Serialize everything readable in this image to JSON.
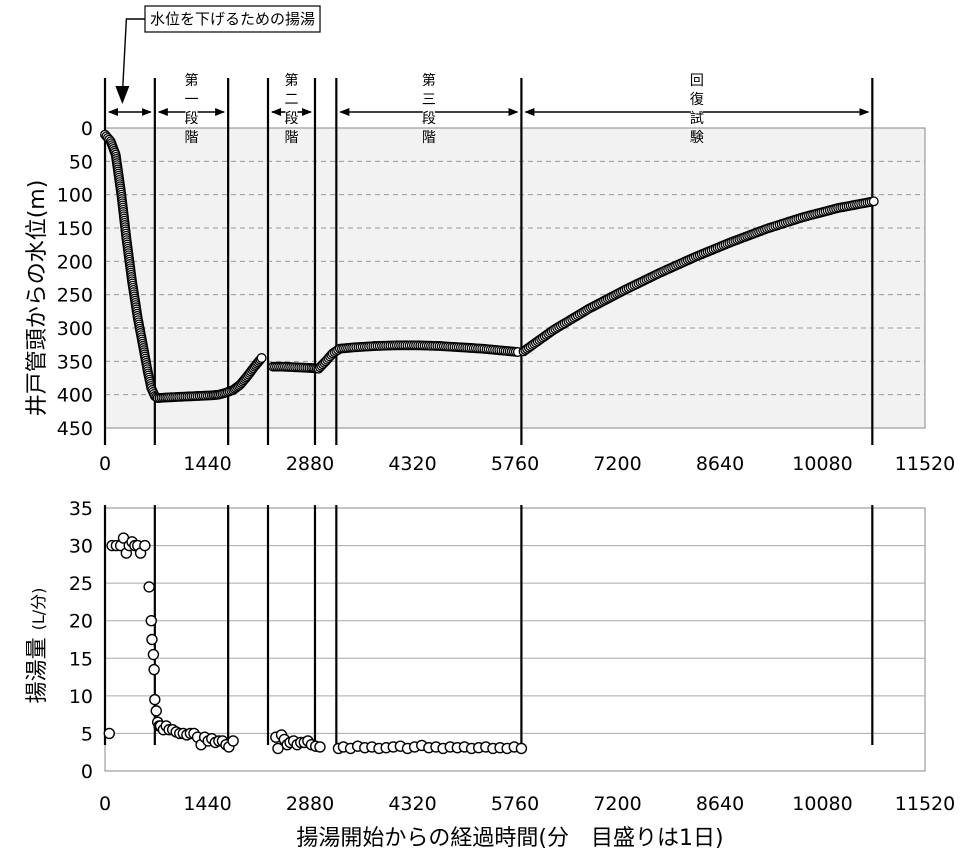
{
  "chart_data": [
    {
      "type": "scatter",
      "ylabel": "井戸管頭からの水位(m)",
      "xlim": [
        0,
        11520
      ],
      "ylim": [
        0,
        450
      ],
      "y_inverted": true,
      "x_ticks": [
        "0",
        "1440",
        "2880",
        "4320",
        "5760",
        "7200",
        "8640",
        "10080",
        "11520"
      ],
      "y_ticks": [
        "0",
        "50",
        "100",
        "150",
        "200",
        "250",
        "300",
        "350",
        "400",
        "450"
      ],
      "grid": "horizontal dashed",
      "marker": "open circle",
      "annotation": "水位を下げるための揚湯",
      "annotation_x": 230,
      "phases": [
        {
          "label": "第一段階",
          "x_start": 700,
          "x_end": 1730
        },
        {
          "label": "第二段階",
          "x_start": 2290,
          "x_end": 2950
        },
        {
          "label": "第三段階",
          "x_start": 3250,
          "x_end": 5850
        },
        {
          "label": "回復試験",
          "x_start": 5850,
          "x_end": 10780
        }
      ],
      "phase_boundaries": [
        0,
        700,
        1730,
        2290,
        2950,
        3250,
        5850,
        10780
      ],
      "segments": [
        {
          "x": [
            0,
            80,
            150,
            230,
            300,
            380,
            460,
            540,
            600,
            650,
            700,
            740
          ],
          "y": [
            10,
            20,
            40,
            100,
            165,
            230,
            285,
            330,
            365,
            390,
            402,
            405
          ]
        },
        {
          "x": [
            740,
            900,
            1100,
            1300,
            1500,
            1600,
            1700,
            1800,
            1900,
            2000,
            2100,
            2200
          ],
          "y": [
            405,
            404,
            403,
            402,
            401,
            400,
            397,
            393,
            385,
            372,
            358,
            345
          ]
        },
        {
          "x": [
            2360,
            2500,
            2700,
            2900,
            3000
          ],
          "y": [
            358,
            358,
            359,
            360,
            361
          ]
        },
        {
          "x": [
            3000,
            3100,
            3200,
            3300,
            3500,
            3800,
            4100,
            4400,
            4700,
            5000,
            5300,
            5600,
            5800
          ],
          "y": [
            361,
            350,
            338,
            331,
            329,
            327,
            326,
            326,
            327,
            329,
            331,
            334,
            336
          ]
        },
        {
          "x": [
            5880,
            6300,
            6800,
            7300,
            7800,
            8300,
            8800,
            9300,
            9800,
            10300,
            10800
          ],
          "y": [
            335,
            303,
            271,
            243,
            217,
            193,
            171,
            151,
            134,
            120,
            110
          ]
        }
      ]
    },
    {
      "type": "scatter",
      "ylabel": "揚湯量",
      "ylabel_unit": "(L/分)",
      "xlabel": "揚湯開始からの経過時間(分　目盛りは1日)",
      "xlim": [
        0,
        11520
      ],
      "ylim": [
        0,
        35
      ],
      "x_ticks": [
        "0",
        "1440",
        "2880",
        "4320",
        "5760",
        "7200",
        "8640",
        "10080",
        "11520"
      ],
      "y_ticks": [
        "0",
        "5",
        "10",
        "15",
        "20",
        "25",
        "30",
        "35"
      ],
      "grid": "horizontal solid",
      "marker": "open circle",
      "phase_boundaries": [
        0,
        700,
        1730,
        2290,
        2950,
        3250,
        5850,
        10780
      ],
      "points": {
        "x": [
          60,
          100,
          160,
          220,
          260,
          300,
          340,
          380,
          420,
          460,
          500,
          560,
          620,
          650,
          660,
          680,
          690,
          700,
          720,
          740,
          760,
          780,
          820,
          860,
          900,
          950,
          1000,
          1050,
          1100,
          1150,
          1200,
          1250,
          1300,
          1350,
          1400,
          1450,
          1500,
          1550,
          1600,
          1650,
          1700,
          1740,
          1800,
          2400,
          2430,
          2480,
          2520,
          2560,
          2600,
          2650,
          2700,
          2750,
          2800,
          2850,
          2900,
          2960,
          3020,
          3280,
          3350,
          3450,
          3550,
          3650,
          3750,
          3850,
          3950,
          4050,
          4150,
          4250,
          4350,
          4450,
          4550,
          4650,
          4750,
          4850,
          4950,
          5050,
          5150,
          5250,
          5350,
          5450,
          5550,
          5650,
          5750,
          5850
        ],
        "y": [
          5,
          30,
          30,
          30,
          31,
          29,
          30,
          30.5,
          30,
          30,
          29,
          30,
          24.5,
          20,
          17.5,
          15.5,
          13.5,
          9.5,
          8,
          6.5,
          6,
          6,
          5.5,
          6,
          5.5,
          5.5,
          5.2,
          5,
          5,
          4.8,
          5,
          5,
          4.5,
          3.5,
          4.5,
          4,
          4.3,
          3.8,
          4,
          4,
          3.5,
          3.2,
          4,
          4.5,
          3,
          4.8,
          4.2,
          3.5,
          3.8,
          4,
          3.5,
          3.8,
          3.8,
          4,
          3.5,
          3.3,
          3.2,
          3,
          3.2,
          3,
          3.3,
          3.1,
          3.2,
          3,
          3.1,
          3.2,
          3.3,
          3,
          3.2,
          3.4,
          3.1,
          3.2,
          3,
          3.2,
          3.1,
          3.2,
          3,
          3.1,
          3.2,
          3,
          3.1,
          3,
          3.2,
          3
        ]
      }
    }
  ]
}
